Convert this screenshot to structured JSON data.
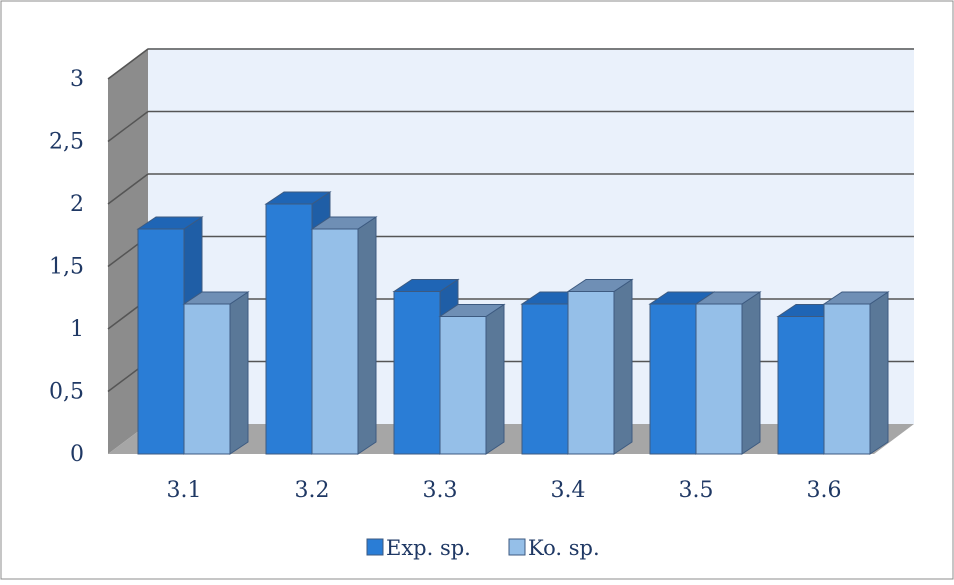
{
  "chart_data": {
    "type": "bar",
    "style": "3d-clustered-column",
    "categories": [
      "3.1",
      "3.2",
      "3.3",
      "3.4",
      "3.5",
      "3.6"
    ],
    "series": [
      {
        "name": "Exp. sp.",
        "values": [
          1.8,
          2.0,
          1.3,
          1.2,
          1.2,
          1.1
        ],
        "color": "#2a7dd6"
      },
      {
        "name": "Ko. sp.",
        "values": [
          1.2,
          1.8,
          1.1,
          1.3,
          1.2,
          1.2
        ],
        "color": "#95bfe8"
      }
    ],
    "y_ticks": [
      "0",
      "0,5",
      "1",
      "1,5",
      "2",
      "2,5",
      "3"
    ],
    "ylim": [
      0,
      3
    ],
    "grid": true,
    "legend_position": "bottom",
    "title": "",
    "xlabel": "",
    "ylabel": ""
  }
}
